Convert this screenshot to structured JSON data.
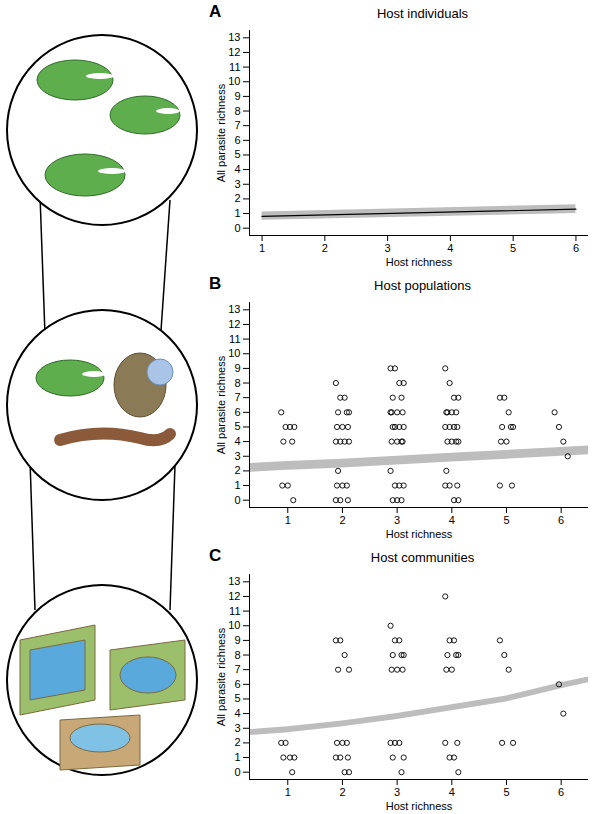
{
  "chart_data": [
    {
      "type": "line",
      "panel": "A",
      "title": "Host individuals",
      "x_label": "Host richness",
      "y_label": "All parasite richness",
      "xlim": [
        0.8,
        6.2
      ],
      "ylim": [
        -0.5,
        13.5
      ],
      "xticks": [
        1,
        2,
        3,
        4,
        5,
        6
      ],
      "yticks": [
        0,
        1,
        2,
        3,
        4,
        5,
        6,
        7,
        8,
        9,
        10,
        11,
        12,
        13
      ],
      "fit": {
        "x": [
          1,
          6
        ],
        "values": [
          0.8,
          1.3
        ],
        "lower": [
          0.55,
          1.0
        ],
        "upper": [
          1.1,
          1.6
        ]
      }
    },
    {
      "type": "scatter",
      "panel": "B",
      "title": "Host populations",
      "x_label": "Host richness",
      "y_label": "All parasite richness",
      "xlim": [
        0.3,
        6.5
      ],
      "ylim": [
        -0.5,
        13.5
      ],
      "xticks": [
        1,
        2,
        3,
        4,
        5,
        6
      ],
      "yticks": [
        0,
        1,
        2,
        3,
        4,
        5,
        6,
        7,
        8,
        9,
        10,
        11,
        12,
        13
      ],
      "marker": "open circle",
      "fit": {
        "x": [
          0.3,
          1,
          2,
          3,
          4,
          5,
          6,
          6.5
        ],
        "lower": [
          1.9,
          2.05,
          2.2,
          2.4,
          2.6,
          2.8,
          3.0,
          3.1
        ],
        "upper": [
          2.5,
          2.65,
          2.8,
          3.0,
          3.2,
          3.4,
          3.6,
          3.7
        ]
      },
      "points": {
        "x": [
          0.88,
          0.96,
          1.04,
          1.12,
          0.92,
          1.08,
          1,
          0.9,
          1.1,
          1.88,
          1.96,
          2.04,
          2.12,
          1.92,
          2.08,
          2,
          1.9,
          2.1,
          1.88,
          1.96,
          2.04,
          2.12,
          1.92,
          2.08,
          2,
          1.9,
          2.1,
          1.88,
          1.96,
          2.88,
          2.96,
          3.04,
          3.12,
          2.92,
          3.08,
          3,
          2.9,
          3.1,
          2.88,
          2.96,
          3.04,
          3.12,
          2.92,
          3.08,
          3,
          2.9,
          3.1,
          2.88,
          2.96,
          3.04,
          3.12,
          2.92,
          3.08,
          3,
          3.88,
          3.96,
          4.04,
          4.12,
          3.92,
          4.08,
          4,
          3.9,
          4.1,
          3.88,
          3.96,
          4.04,
          4.12,
          3.92,
          4.08,
          4,
          3.9,
          4.1,
          3.88,
          3.96,
          4.04,
          4.12,
          4.88,
          4.96,
          5.04,
          5.12,
          4.92,
          5.08,
          5,
          4.9,
          5.1,
          4.88,
          5.88,
          5.96,
          6.04,
          6.12
        ],
        "y": [
          6,
          5,
          5,
          5,
          4,
          4,
          1,
          1,
          0,
          8,
          7,
          7,
          6,
          6,
          6,
          5,
          5,
          5,
          4,
          4,
          4,
          4,
          2,
          1,
          1,
          1,
          0,
          0,
          0,
          9,
          9,
          8,
          8,
          7,
          7,
          6,
          6,
          6,
          6,
          5,
          5,
          5,
          5,
          4,
          4,
          4,
          4,
          2,
          1,
          1,
          1,
          0,
          0,
          0,
          9,
          8,
          7,
          7,
          6,
          6,
          6,
          6,
          5,
          5,
          5,
          5,
          4,
          4,
          4,
          4,
          2,
          1,
          1,
          1,
          0,
          0,
          7,
          7,
          6,
          5,
          5,
          5,
          4,
          4,
          1,
          1,
          6,
          5,
          4,
          3
        ]
      }
    },
    {
      "type": "scatter",
      "panel": "C",
      "title": "Host communities",
      "x_label": "Host richness",
      "y_label": "All parasite richness",
      "xlim": [
        0.3,
        6.5
      ],
      "ylim": [
        -0.5,
        13.5
      ],
      "xticks": [
        1,
        2,
        3,
        4,
        5,
        6
      ],
      "yticks": [
        0,
        1,
        2,
        3,
        4,
        5,
        6,
        7,
        8,
        9,
        10,
        11,
        12,
        13
      ],
      "marker": "open circle",
      "fit": {
        "x": [
          0.3,
          1,
          2,
          3,
          4,
          5,
          6,
          6.5
        ],
        "lower": [
          2.5,
          2.7,
          3.1,
          3.6,
          4.2,
          4.8,
          5.7,
          6.1
        ],
        "upper": [
          2.9,
          3.1,
          3.5,
          4.0,
          4.6,
          5.2,
          6.1,
          6.5
        ]
      },
      "points": {
        "x": [
          0.88,
          0.96,
          1.04,
          1.12,
          0.92,
          1.08,
          1.88,
          1.96,
          2.04,
          2.12,
          1.92,
          2.08,
          2,
          1.9,
          2.1,
          1.88,
          1.96,
          2.04,
          2.12,
          2.88,
          2.96,
          3.04,
          3.12,
          2.92,
          3.08,
          3,
          2.9,
          3.1,
          2.88,
          2.96,
          3.04,
          3.12,
          2.92,
          3.08,
          3.88,
          3.96,
          4.04,
          4.12,
          3.92,
          4.08,
          4,
          3.9,
          4.1,
          3.88,
          3.96,
          4.04,
          4.12,
          4.88,
          4.96,
          5.04,
          5.12,
          4.92,
          5.96,
          6.04
        ],
        "y": [
          2,
          2,
          1,
          1,
          1,
          0,
          9,
          9,
          8,
          7,
          7,
          2,
          2,
          2,
          1,
          1,
          1,
          0,
          0,
          10,
          9,
          9,
          8,
          8,
          8,
          7,
          7,
          7,
          2,
          2,
          2,
          1,
          1,
          0,
          12,
          9,
          9,
          8,
          8,
          8,
          7,
          7,
          2,
          2,
          1,
          1,
          0,
          9,
          8,
          7,
          2,
          2,
          6,
          4
        ]
      }
    }
  ]
}
